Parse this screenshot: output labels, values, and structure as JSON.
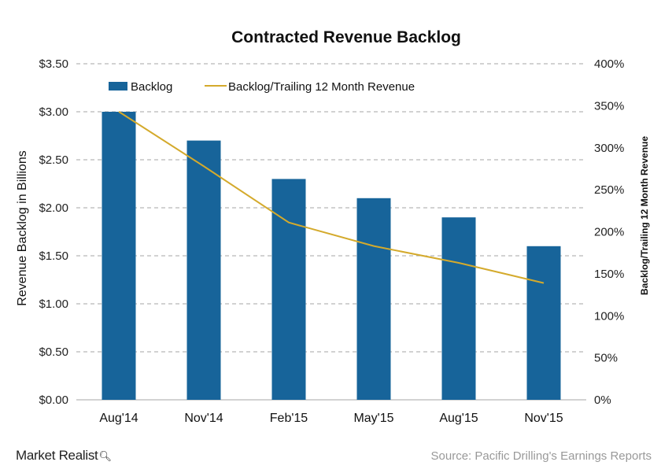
{
  "chart_data": {
    "type": "bar",
    "title": "Contracted Revenue Backlog",
    "categories": [
      "Aug'14",
      "Nov'14",
      "Feb'15",
      "May'15",
      "Aug'15",
      "Nov'15"
    ],
    "series": [
      {
        "name": "Backlog",
        "type": "bar",
        "axis": "left",
        "values": [
          3.0,
          2.7,
          2.3,
          2.1,
          1.9,
          1.6
        ]
      },
      {
        "name": "Backlog/Trailing 12 Month Revenue",
        "type": "line",
        "axis": "right",
        "values": [
          343,
          278,
          211,
          183,
          163,
          139
        ]
      }
    ],
    "ylabel": "Revenue Backlog in Billions",
    "y2label": "Backlog/Trailing 12 Month Revenue",
    "ylim": [
      0,
      3.5
    ],
    "y2lim": [
      0,
      400
    ],
    "yticks": [
      "$0.00",
      "$0.50",
      "$1.00",
      "$1.50",
      "$2.00",
      "$2.50",
      "$3.00",
      "$3.50"
    ],
    "y2ticks": [
      "0%",
      "50%",
      "100%",
      "150%",
      "200%",
      "250%",
      "300%",
      "350%",
      "400%"
    ],
    "grid": true,
    "legend_position": "top-left",
    "colors": {
      "bar": "#17649a",
      "line": "#d4aa2c",
      "grid": "#a6a6a6"
    }
  },
  "footer": {
    "brand": "Market Realist",
    "source": "Source:  Pacific Drilling's  Earnings Reports"
  }
}
